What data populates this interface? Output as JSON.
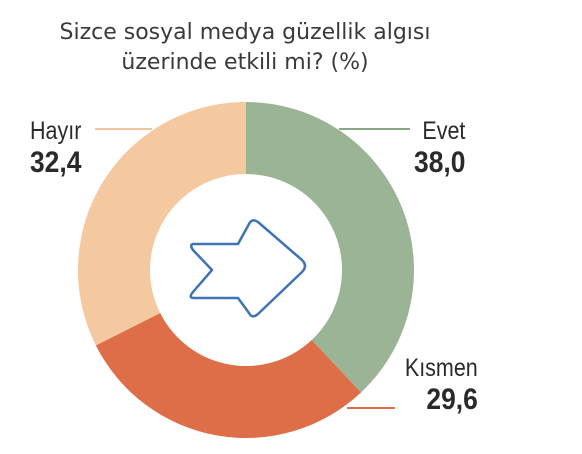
{
  "chart_data": {
    "type": "pie",
    "title_lines": [
      "Sizce sosyal medya güzellik algısı",
      "üzerinde etkili mi? (%)"
    ],
    "slices": [
      {
        "label": "Evet",
        "value_label": "38,0",
        "value": 38.0,
        "color": "#9bb496",
        "leader_color": "#8aa886"
      },
      {
        "label": "Kısmen",
        "value_label": "29,6",
        "value": 29.6,
        "color": "#de6e48",
        "leader_color": "#de6e48"
      },
      {
        "label": "Hayır",
        "value_label": "32,4",
        "value": 32.4,
        "color": "#f4c9a0",
        "leader_color": "#f2c49a"
      }
    ],
    "center_icon": "arrow-right-icon",
    "icon_color": "#3f73b4"
  }
}
